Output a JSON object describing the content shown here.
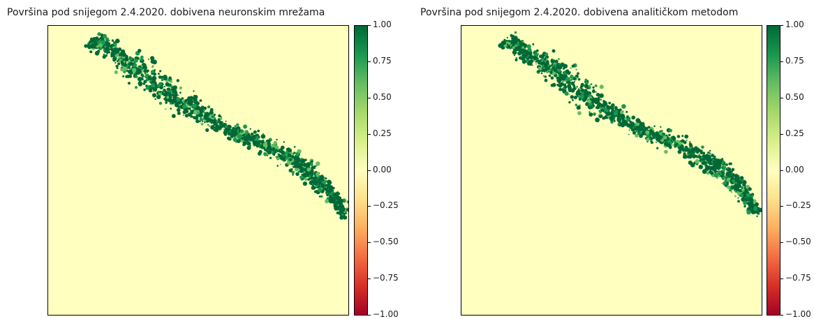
{
  "chart_data": [
    {
      "type": "heatmap",
      "title": "Površina pod snijegom 2.4.2020. dobivena neuronskim mrežama",
      "colormap": "RdYlGn",
      "clim": [
        -1.0,
        1.0
      ],
      "colorbar_ticks": [
        "1.00",
        "0.75",
        "0.50",
        "0.25",
        "0.00",
        "−0.25",
        "−0.50",
        "−0.75",
        "−1.00"
      ],
      "background_value": 0.0,
      "snow_value": 1.0
    },
    {
      "type": "heatmap",
      "title": "Površina pod snijegom 2.4.2020. dobivena analitičkom metodom",
      "colormap": "RdYlGn",
      "clim": [
        -1.0,
        1.0
      ],
      "colorbar_ticks": [
        "1.00",
        "0.75",
        "0.50",
        "0.25",
        "0.00",
        "−0.25",
        "−0.50",
        "−0.75",
        "−1.00"
      ],
      "background_value": 0.0,
      "snow_value": 1.0
    }
  ],
  "colors": {
    "background": "#ffffc0",
    "snow_dark": "#006837",
    "snow_mid": "#1a9850",
    "snow_light": "#66bd63"
  }
}
